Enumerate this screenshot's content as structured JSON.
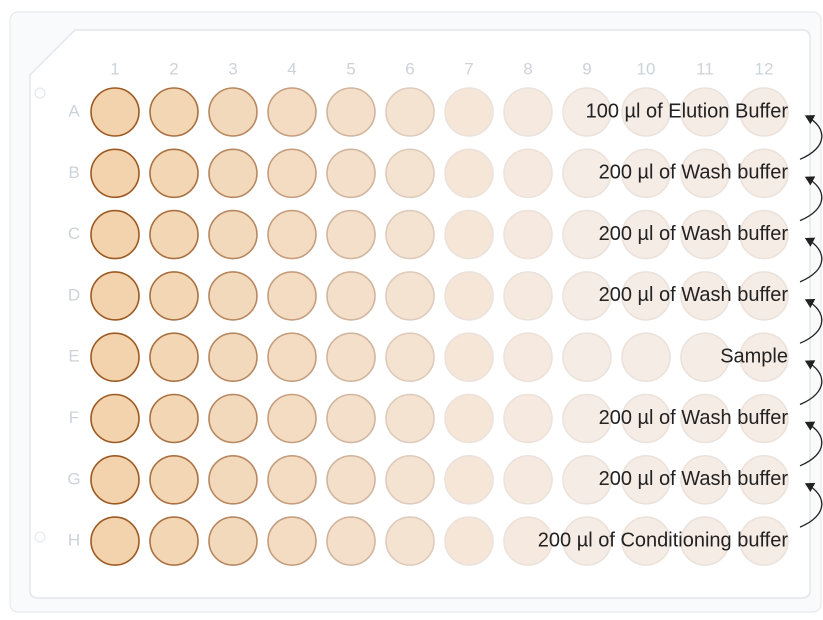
{
  "columns": [
    "1",
    "2",
    "3",
    "4",
    "5",
    "6",
    "7",
    "8",
    "9",
    "10",
    "11",
    "12"
  ],
  "rows": [
    "A",
    "B",
    "C",
    "D",
    "E",
    "F",
    "G",
    "H"
  ],
  "annotations": [
    "100 µl of Elution Buffer",
    "200 µl of Wash buffer",
    "200 µl of Wash buffer",
    "200 µl of Wash buffer",
    "Sample",
    "200 µl of Wash buffer",
    "200 µl of Wash buffer",
    "200 µl of Conditioning buffer"
  ]
}
